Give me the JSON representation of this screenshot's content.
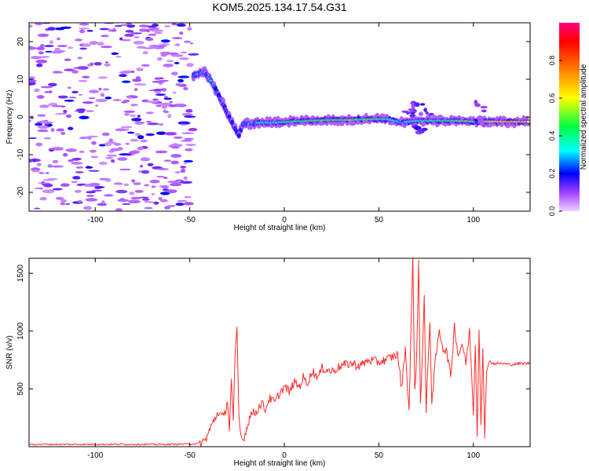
{
  "title": "KOM5.2025.134.17.54.G31",
  "chart_data": [
    {
      "type": "heatmap",
      "xlabel": "Height of straight line (km)",
      "ylabel": "Frequency (Hz)",
      "xlim": [
        -135,
        130
      ],
      "ylim": [
        -25,
        25
      ],
      "xticks": [
        -100,
        -50,
        0,
        50,
        100
      ],
      "yticks": [
        -20,
        -10,
        0,
        10,
        20
      ],
      "colorbar": {
        "label": "Normalized spectral amplitude",
        "range": [
          0,
          1
        ],
        "ticks": [
          "0.0",
          "0.2",
          "0.4",
          "0.6",
          "0.8"
        ],
        "colors": [
          "#f0d0ff",
          "#7b00ff",
          "#0000ff",
          "#00ffff",
          "#00ff00",
          "#ffff00",
          "#ff8000",
          "#ff0000",
          "#ff0080"
        ]
      },
      "noise_region_x": [
        -135,
        -48
      ],
      "trace": [
        {
          "x": -48,
          "y": 11,
          "a": 0.25
        },
        {
          "x": -42,
          "y": 12,
          "a": 0.3
        },
        {
          "x": -38,
          "y": 9,
          "a": 0.25
        },
        {
          "x": -34,
          "y": 5,
          "a": 0.2
        },
        {
          "x": -30,
          "y": 1,
          "a": 0.2
        },
        {
          "x": -26,
          "y": -3,
          "a": 0.2
        },
        {
          "x": -24,
          "y": -5,
          "a": 0.2
        },
        {
          "x": -22,
          "y": -2,
          "a": 0.25
        },
        {
          "x": -15,
          "y": -1.5,
          "a": 0.3
        },
        {
          "x": -5,
          "y": -1.5,
          "a": 0.35
        },
        {
          "x": 5,
          "y": -1.2,
          "a": 0.45
        },
        {
          "x": 15,
          "y": -1,
          "a": 0.45
        },
        {
          "x": 25,
          "y": -0.8,
          "a": 0.5
        },
        {
          "x": 35,
          "y": -0.8,
          "a": 0.5
        },
        {
          "x": 45,
          "y": -0.6,
          "a": 0.45
        },
        {
          "x": 55,
          "y": -0.6,
          "a": 0.4
        },
        {
          "x": 62,
          "y": -1.5,
          "a": 0.3
        },
        {
          "x": 70,
          "y": -1,
          "a": 0.35
        },
        {
          "x": 80,
          "y": -1,
          "a": 0.4
        },
        {
          "x": 90,
          "y": -1,
          "a": 0.45
        },
        {
          "x": 100,
          "y": -1.2,
          "a": 0.5
        },
        {
          "x": 110,
          "y": -1.2,
          "a": 0.6
        },
        {
          "x": 120,
          "y": -1.3,
          "a": 0.7
        },
        {
          "x": 130,
          "y": -1.3,
          "a": 0.65
        }
      ]
    },
    {
      "type": "line",
      "xlabel": "Height of straight line (km)",
      "ylabel": "SNR (v/v)",
      "xlim": [
        -135,
        130
      ],
      "ylim": [
        0,
        1630
      ],
      "xticks": [
        -100,
        -50,
        0,
        50,
        100
      ],
      "yticks": [
        500,
        1000,
        1500
      ],
      "color": "#ff2a2a",
      "x": [
        -135,
        -60,
        -45,
        -42,
        -40,
        -38,
        -35,
        -32,
        -30,
        -29,
        -28,
        -27,
        -26,
        -25,
        -24,
        -23,
        -22,
        -20,
        -18,
        -15,
        -12,
        -10,
        -8,
        -5,
        -3,
        0,
        3,
        5,
        8,
        10,
        12,
        15,
        18,
        20,
        25,
        30,
        35,
        40,
        45,
        50,
        55,
        60,
        62,
        64,
        66,
        67,
        68,
        69,
        70,
        71,
        72,
        73,
        74,
        75,
        76,
        77,
        78,
        80,
        82,
        84,
        86,
        88,
        90,
        92,
        94,
        96,
        98,
        100,
        101,
        102,
        103,
        104,
        105,
        106,
        107,
        108,
        110,
        115,
        120,
        125,
        130
      ],
      "values": [
        20,
        20,
        25,
        50,
        120,
        200,
        300,
        250,
        400,
        150,
        600,
        200,
        800,
        1000,
        250,
        100,
        50,
        150,
        280,
        300,
        380,
        320,
        420,
        380,
        450,
        520,
        470,
        560,
        520,
        600,
        550,
        650,
        600,
        680,
        650,
        700,
        720,
        700,
        750,
        730,
        760,
        800,
        500,
        850,
        300,
        1000,
        1630,
        500,
        750,
        1600,
        380,
        800,
        1300,
        300,
        700,
        1100,
        380,
        760,
        1000,
        850,
        820,
        600,
        1050,
        780,
        900,
        720,
        1000,
        300,
        900,
        100,
        1050,
        200,
        850,
        50,
        650,
        750,
        720,
        720,
        710,
        720,
        720
      ]
    }
  ]
}
